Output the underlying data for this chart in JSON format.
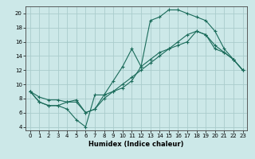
{
  "xlabel": "Humidex (Indice chaleur)",
  "ylabel": "",
  "bg_color": "#cce8e8",
  "grid_color": "#aacccc",
  "line_color": "#1a6b5a",
  "xlim": [
    -0.5,
    23.5
  ],
  "ylim": [
    3.5,
    21.0
  ],
  "xticks": [
    0,
    1,
    2,
    3,
    4,
    5,
    6,
    7,
    8,
    9,
    10,
    11,
    12,
    13,
    14,
    15,
    16,
    17,
    18,
    19,
    20,
    21,
    22,
    23
  ],
  "yticks": [
    4,
    6,
    8,
    10,
    12,
    14,
    16,
    18,
    20
  ],
  "line1_x": [
    0,
    1,
    2,
    3,
    4,
    5,
    6,
    7,
    8,
    9,
    10,
    11,
    12,
    13,
    14,
    15,
    16,
    17,
    18,
    19,
    20,
    21,
    22,
    23
  ],
  "line1_y": [
    9.0,
    7.5,
    7.0,
    7.0,
    6.5,
    5.0,
    4.0,
    8.5,
    8.5,
    10.5,
    12.5,
    15.0,
    12.5,
    19.0,
    19.5,
    20.5,
    20.5,
    20.0,
    19.5,
    19.0,
    17.5,
    15.0,
    13.5,
    12.0
  ],
  "line2_x": [
    0,
    1,
    2,
    3,
    4,
    5,
    6,
    7,
    8,
    9,
    10,
    11,
    12,
    13,
    14,
    15,
    16,
    17,
    18,
    19,
    20,
    21,
    22,
    23
  ],
  "line2_y": [
    9.0,
    7.5,
    7.0,
    7.0,
    7.5,
    7.5,
    6.0,
    6.5,
    8.0,
    9.0,
    10.0,
    11.0,
    12.0,
    13.0,
    14.0,
    15.0,
    15.5,
    16.0,
    17.5,
    17.0,
    15.0,
    14.5,
    13.5,
    12.0
  ],
  "line3_x": [
    0,
    1,
    2,
    3,
    4,
    5,
    6,
    7,
    8,
    9,
    10,
    11,
    12,
    13,
    14,
    15,
    16,
    17,
    18,
    19,
    20,
    21,
    22,
    23
  ],
  "line3_y": [
    9.0,
    8.2,
    7.8,
    7.8,
    7.5,
    7.8,
    6.0,
    6.5,
    8.5,
    9.0,
    9.5,
    10.5,
    12.5,
    13.5,
    14.5,
    15.0,
    16.0,
    17.0,
    17.5,
    17.0,
    15.5,
    14.5,
    13.5,
    12.0
  ]
}
